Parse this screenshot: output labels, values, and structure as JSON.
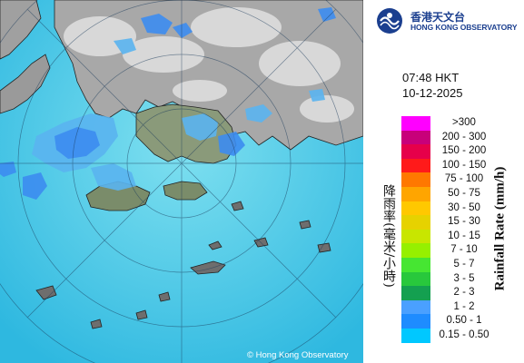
{
  "logo": {
    "cn": "香港天文台",
    "en": "HONG KONG OBSERVATORY",
    "icon": "hko-logo-icon"
  },
  "timestamp": {
    "time": "07:48 HKT",
    "date": "10-12-2025"
  },
  "legend": {
    "title_en": "Rainfall Rate (mm/h)",
    "title_cn": "降雨率(毫米/小時)",
    "items": [
      {
        "label": ">300",
        "color": "#ff00ff"
      },
      {
        "label": "200 - 300",
        "color": "#c8007a"
      },
      {
        "label": "150 - 200",
        "color": "#e6004a"
      },
      {
        "label": "100 - 150",
        "color": "#ff1a1a"
      },
      {
        "label": "75 - 100",
        "color": "#ff7800"
      },
      {
        "label": "50 - 75",
        "color": "#ffa500"
      },
      {
        "label": "30 - 50",
        "color": "#ffc800"
      },
      {
        "label": "15 - 30",
        "color": "#e6d200"
      },
      {
        "label": "10 - 15",
        "color": "#c8e600"
      },
      {
        "label": "7 - 10",
        "color": "#96f000"
      },
      {
        "label": "5 - 7",
        "color": "#46e632"
      },
      {
        "label": "3 - 5",
        "color": "#28c83c"
      },
      {
        "label": "2 - 3",
        "color": "#14a050"
      },
      {
        "label": "1 - 2",
        "color": "#4aa0ff"
      },
      {
        "label": "0.50 - 1",
        "color": "#1e8cff"
      },
      {
        "label": "0.15 - 0.50",
        "color": "#00c8ff"
      }
    ]
  },
  "map": {
    "copyright": "© Hong Kong Observatory",
    "sea_color": "#3cc8e6",
    "range_rings_km": [
      20,
      40,
      60,
      80
    ]
  }
}
